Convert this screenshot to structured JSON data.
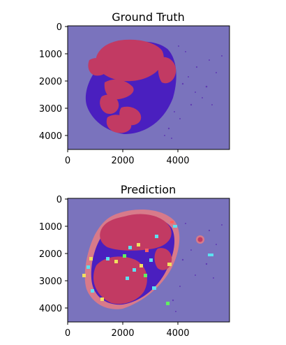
{
  "panels": [
    {
      "title": "Ground Truth",
      "x_ticks": [
        "0",
        "2000",
        "4000"
      ],
      "y_ticks": [
        "0",
        "1000",
        "2000",
        "3000",
        "4000"
      ]
    },
    {
      "title": "Prediction",
      "x_ticks": [
        "0",
        "2000",
        "4000"
      ],
      "y_ticks": [
        "0",
        "1000",
        "2000",
        "3000",
        "4000"
      ]
    }
  ],
  "chart_data": [
    {
      "type": "heatmap",
      "title": "Ground Truth",
      "xlim": [
        0,
        5900
      ],
      "ylim": [
        4500,
        0
      ],
      "xticks": [
        0,
        2000,
        4000
      ],
      "yticks": [
        0,
        1000,
        2000,
        3000,
        4000
      ],
      "grid": false,
      "colors": {
        "background": "#7a73bd",
        "tissue": "#4a1fbf",
        "tumor": "#c23a63",
        "sparse": "#5a2fb0"
      }
    },
    {
      "type": "heatmap",
      "title": "Prediction",
      "xlim": [
        0,
        5900
      ],
      "ylim": [
        4500,
        0
      ],
      "xticks": [
        0,
        2000,
        4000
      ],
      "yticks": [
        0,
        1000,
        2000,
        3000,
        4000
      ],
      "grid": false,
      "colors": {
        "background": "#7a73bd",
        "tissue": "#4a1fbf",
        "tumor": "#c23a63",
        "margin": "#d87a8a",
        "noise": [
          "#5ce0f0",
          "#f0e060",
          "#ff6060",
          "#60f060"
        ]
      }
    }
  ]
}
